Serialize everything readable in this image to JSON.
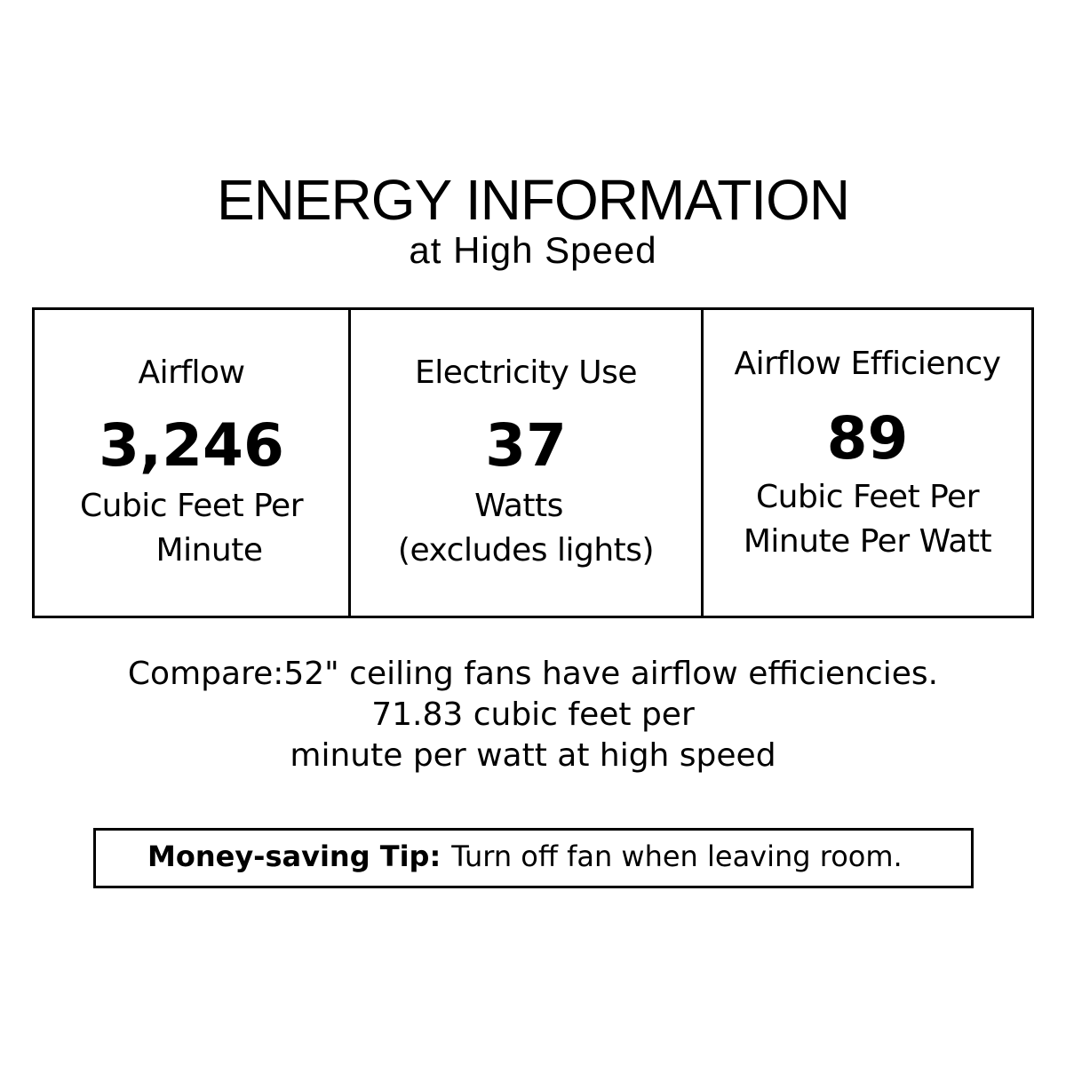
{
  "title": "ENERGY INFORMATION",
  "subtitle": "at High Speed",
  "cells": [
    {
      "label": "Airflow",
      "value": "3,246",
      "unit_lines": [
        "Cubic Feet Per",
        "Minute"
      ]
    },
    {
      "label": "Electricity Use",
      "value": "37",
      "unit_lines": [
        "Watts",
        "(excludes lights)"
      ]
    },
    {
      "label": "Airflow Efficiency",
      "value": "89",
      "unit_lines": [
        "Cubic Feet Per",
        "Minute Per Watt"
      ]
    }
  ],
  "compare_lines": [
    "Compare:52\" ceiling fans have airflow efficiencies.",
    "71.83 cubic feet per",
    "minute per watt at high speed"
  ],
  "tip": {
    "label": "Money-saving Tip:",
    "text": "Turn off fan when leaving room."
  }
}
